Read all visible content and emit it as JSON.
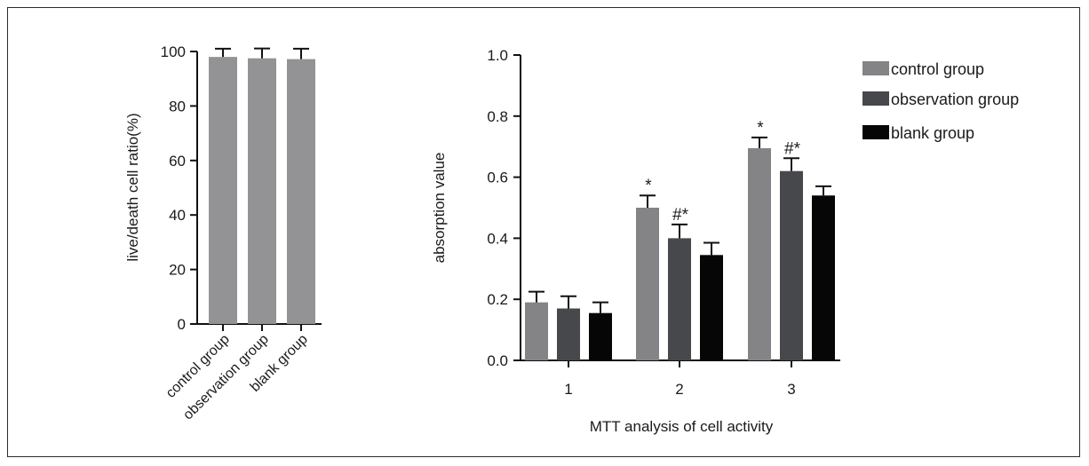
{
  "chart_data": [
    {
      "type": "bar",
      "categories": [
        "control group",
        "observation group",
        "blank group"
      ],
      "values": [
        98,
        97.5,
        97.2
      ],
      "errors": [
        3,
        3.6,
        3.8
      ],
      "ylabel": "live/death cell ratio(%)",
      "xlabel": "",
      "ylim": [
        0,
        100
      ],
      "yticks": [
        "0",
        "20",
        "40",
        "60",
        "80",
        "100"
      ],
      "colors": {
        "bar": "#939396"
      },
      "grid": false
    },
    {
      "type": "bar",
      "categories": [
        "1",
        "2",
        "3"
      ],
      "series": [
        {
          "name": "control group",
          "values": [
            0.19,
            0.5,
            0.695
          ],
          "errors": [
            0.035,
            0.04,
            0.035
          ],
          "annotations": [
            "",
            "*",
            "*"
          ],
          "color": "#848486"
        },
        {
          "name": "observation group",
          "values": [
            0.17,
            0.4,
            0.62
          ],
          "errors": [
            0.04,
            0.045,
            0.042
          ],
          "annotations": [
            "",
            "#*",
            "#*"
          ],
          "color": "#47484b"
        },
        {
          "name": "blank group",
          "values": [
            0.155,
            0.345,
            0.54
          ],
          "errors": [
            0.035,
            0.04,
            0.03
          ],
          "annotations": [
            "",
            "",
            ""
          ],
          "color": "#060606"
        }
      ],
      "ylabel": "absorption value",
      "xlabel": "MTT analysis of cell activity",
      "ylim": [
        0,
        1.0
      ],
      "yticks": [
        "0.0",
        "0.2",
        "0.4",
        "0.6",
        "0.8",
        "1.0"
      ],
      "legend": "top-right",
      "grid": false
    }
  ]
}
